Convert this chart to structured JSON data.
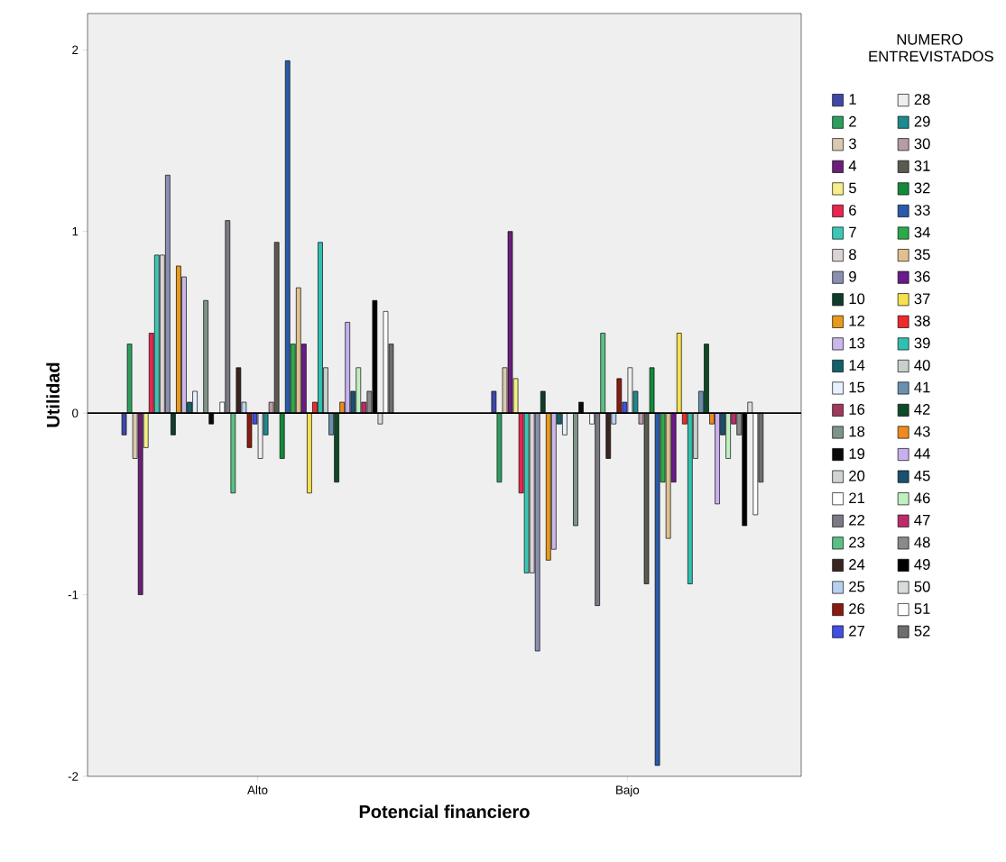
{
  "chart_data": {
    "type": "bar",
    "xlabel": "Potencial financiero",
    "ylabel": "Utilidad",
    "legend_title": "NUMERO ENTREVISTADOS",
    "legend": "right",
    "categories": [
      "Alto",
      "Bajo"
    ],
    "ylim": [
      -2,
      2.2
    ],
    "yticks": [
      -2,
      -1,
      0,
      1,
      2
    ],
    "ref_lines": [
      {
        "axis": "y",
        "value": 0
      }
    ],
    "series": [
      {
        "name": "1",
        "color": "#3f48a8",
        "values": [
          -0.12,
          0.12
        ]
      },
      {
        "name": "2",
        "color": "#2e9e5e",
        "values": [
          0.38,
          -0.38
        ]
      },
      {
        "name": "3",
        "color": "#d9c9b0",
        "values": [
          -0.25,
          0.25
        ]
      },
      {
        "name": "4",
        "color": "#6b1f7a",
        "values": [
          -1.0,
          1.0
        ]
      },
      {
        "name": "5",
        "color": "#f5ee8a",
        "values": [
          -0.19,
          0.19
        ]
      },
      {
        "name": "6",
        "color": "#e8264f",
        "values": [
          0.44,
          -0.44
        ]
      },
      {
        "name": "7",
        "color": "#3cc7b5",
        "values": [
          0.87,
          -0.88
        ]
      },
      {
        "name": "8",
        "color": "#ddd3d3",
        "values": [
          0.87,
          -0.88
        ]
      },
      {
        "name": "9",
        "color": "#8a8fb0",
        "values": [
          1.31,
          -1.31
        ]
      },
      {
        "name": "10",
        "color": "#0f3d2a",
        "values": [
          -0.12,
          0.12
        ]
      },
      {
        "name": "12",
        "color": "#e89a1a",
        "values": [
          0.81,
          -0.81
        ]
      },
      {
        "name": "13",
        "color": "#c9b8e8",
        "values": [
          0.75,
          -0.75
        ]
      },
      {
        "name": "14",
        "color": "#14606a",
        "values": [
          0.06,
          -0.06
        ]
      },
      {
        "name": "15",
        "color": "#e8f0ff",
        "values": [
          0.12,
          -0.12
        ]
      },
      {
        "name": "16",
        "color": "#9e3a5e",
        "values": [
          null,
          null
        ]
      },
      {
        "name": "18",
        "color": "#7f9488",
        "values": [
          0.62,
          -0.62
        ]
      },
      {
        "name": "19",
        "color": "#0a0a0a",
        "values": [
          -0.06,
          0.06
        ]
      },
      {
        "name": "20",
        "color": "#d0d4d0",
        "values": [
          null,
          null
        ]
      },
      {
        "name": "21",
        "color": "#ffffff",
        "values": [
          0.06,
          -0.06
        ]
      },
      {
        "name": "22",
        "color": "#7a7a85",
        "values": [
          1.06,
          -1.06
        ]
      },
      {
        "name": "23",
        "color": "#5cbf85",
        "values": [
          -0.44,
          0.44
        ]
      },
      {
        "name": "24",
        "color": "#3a2420",
        "values": [
          0.25,
          -0.25
        ]
      },
      {
        "name": "25",
        "color": "#b8d0f0",
        "values": [
          0.06,
          -0.06
        ]
      },
      {
        "name": "26",
        "color": "#8a1a10",
        "values": [
          -0.19,
          0.19
        ]
      },
      {
        "name": "27",
        "color": "#4050e0",
        "values": [
          -0.06,
          0.06
        ]
      },
      {
        "name": "28",
        "color": "#eeeeee",
        "values": [
          -0.25,
          0.25
        ]
      },
      {
        "name": "29",
        "color": "#1f8a8f",
        "values": [
          -0.12,
          0.12
        ]
      },
      {
        "name": "30",
        "color": "#b89aa8",
        "values": [
          0.06,
          -0.06
        ]
      },
      {
        "name": "31",
        "color": "#5a5a50",
        "values": [
          0.94,
          -0.94
        ]
      },
      {
        "name": "32",
        "color": "#128a3a",
        "values": [
          -0.25,
          0.25
        ]
      },
      {
        "name": "33",
        "color": "#2a5aaa",
        "values": [
          1.94,
          -1.94
        ]
      },
      {
        "name": "34",
        "color": "#2aaa4a",
        "values": [
          0.38,
          -0.38
        ]
      },
      {
        "name": "35",
        "color": "#e0c090",
        "values": [
          0.69,
          -0.69
        ]
      },
      {
        "name": "36",
        "color": "#6a1a8a",
        "values": [
          0.38,
          -0.38
        ]
      },
      {
        "name": "37",
        "color": "#f5e050",
        "values": [
          -0.44,
          0.44
        ]
      },
      {
        "name": "38",
        "color": "#ee2a2a",
        "values": [
          0.06,
          -0.06
        ]
      },
      {
        "name": "39",
        "color": "#30c0b0",
        "values": [
          0.94,
          -0.94
        ]
      },
      {
        "name": "40",
        "color": "#c8d0cc",
        "values": [
          0.25,
          -0.25
        ]
      },
      {
        "name": "41",
        "color": "#6a90b0",
        "values": [
          -0.12,
          0.12
        ]
      },
      {
        "name": "42",
        "color": "#0f4a28",
        "values": [
          -0.38,
          0.38
        ]
      },
      {
        "name": "43",
        "color": "#f08a20",
        "values": [
          0.06,
          -0.06
        ]
      },
      {
        "name": "44",
        "color": "#c8b0f0",
        "values": [
          0.5,
          -0.5
        ]
      },
      {
        "name": "45",
        "color": "#1a5070",
        "values": [
          0.12,
          -0.12
        ]
      },
      {
        "name": "46",
        "color": "#c0f0c0",
        "values": [
          0.25,
          -0.25
        ]
      },
      {
        "name": "47",
        "color": "#c02a6a",
        "values": [
          0.06,
          -0.06
        ]
      },
      {
        "name": "48",
        "color": "#8a8a8a",
        "values": [
          0.12,
          -0.12
        ]
      },
      {
        "name": "49",
        "color": "#000000",
        "values": [
          0.62,
          -0.62
        ]
      },
      {
        "name": "50",
        "color": "#d8dcd8",
        "values": [
          -0.06,
          0.06
        ]
      },
      {
        "name": "51",
        "color": "#ffffff",
        "values": [
          0.56,
          -0.56
        ]
      },
      {
        "name": "52",
        "color": "#6e6e6e",
        "values": [
          0.38,
          -0.38
        ]
      }
    ]
  }
}
